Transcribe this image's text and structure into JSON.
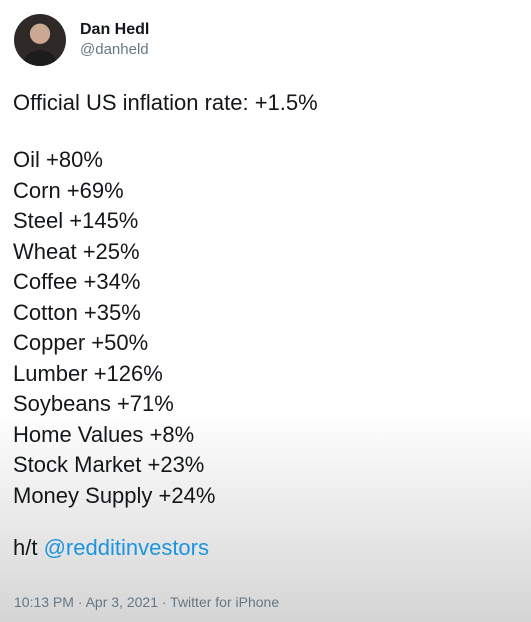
{
  "author": {
    "display_name": "Dan Hedl",
    "handle": "@danheld"
  },
  "tweet": {
    "headline": "Official US inflation rate: +1.5%",
    "items": [
      "Oil +80%",
      "Corn +69%",
      "Steel +145%",
      "Wheat +25%",
      "Coffee +34%",
      "Cotton +35%",
      "Copper +50%",
      "Lumber +126%",
      "Soybeans +71%",
      "Home Values +8%",
      "Stock Market +23%",
      "Money Supply +24%"
    ],
    "hattip_prefix": "h/t",
    "hattip_mention": "@redditinvestors",
    "timestamp": "10:13 PM · Apr 3, 2021 · Twitter for iPhone"
  },
  "colors": {
    "link": "#1b95e0",
    "secondary_text": "#657786",
    "primary_text": "#14171a"
  }
}
